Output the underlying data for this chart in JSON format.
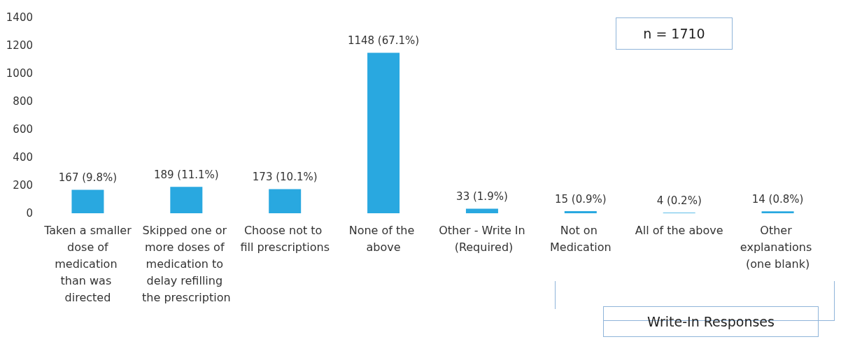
{
  "chart_data": {
    "type": "bar",
    "categories": [
      "Taken a smaller dose of medication than was directed",
      "Skipped one or more doses of medication to delay refilling the prescription",
      "Choose not to fill prescriptions",
      "None of the above",
      "Other - Write In (Required)",
      "Not on Medication",
      "All of the above",
      "Other explanations (one blank)"
    ],
    "values": [
      167,
      189,
      173,
      1148,
      33,
      15,
      4,
      14
    ],
    "value_labels": [
      "167 (9.8%)",
      "189 (11.1%)",
      "173 (10.1%)",
      "1148 (67.1%)",
      "33 (1.9%)",
      "15 (0.9%)",
      "4 (0.2%)",
      "14 (0.8%)"
    ],
    "color": "#29a8e0",
    "ylim": [
      0,
      1400
    ],
    "yticks": [
      0,
      200,
      400,
      600,
      800,
      1000,
      1200,
      1400
    ],
    "grid": false,
    "annotations": [
      "n = 1710",
      "Write-In Responses"
    ]
  }
}
